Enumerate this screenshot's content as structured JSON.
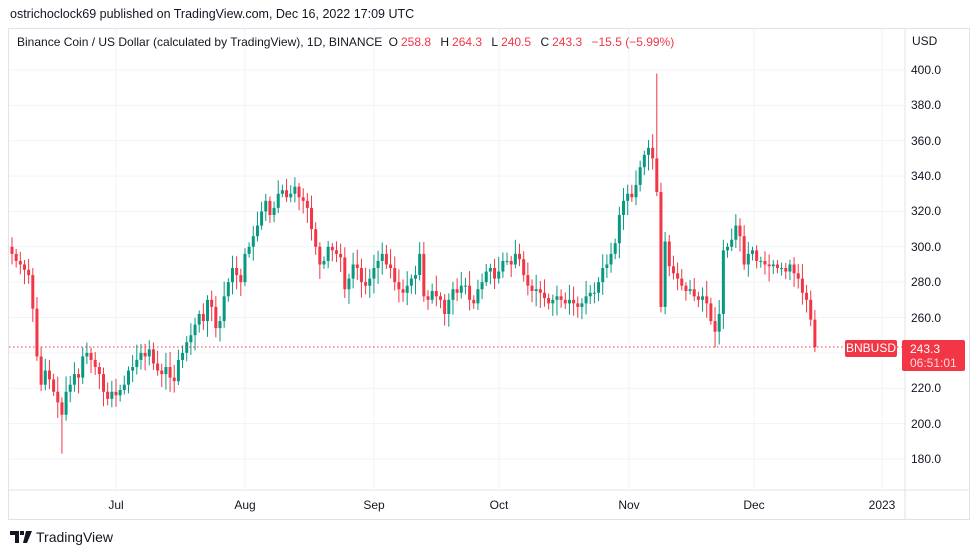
{
  "published": "ostrichoclock69 published on TradingView.com, Dec 16, 2022 17:09 UTC",
  "legend": {
    "title": "Binance Coin / US Dollar (calculated by TradingView), 1D, BINANCE",
    "o_label": "O",
    "o": "258.8",
    "h_label": "H",
    "h": "264.3",
    "l_label": "L",
    "l": "240.5",
    "c_label": "C",
    "c": "243.3",
    "change": "−15.5 (−5.99%)"
  },
  "currency": "USD",
  "symbol_tag": "BNBUSD",
  "last_price": "243.3",
  "countdown": "06:51:01",
  "brand": "TradingView",
  "colors": {
    "up": "#089981",
    "down": "#f23645",
    "grid": "#f0f3fa"
  },
  "chart_data": {
    "type": "candlestick",
    "title": "Binance Coin / US Dollar, 1D",
    "start_date": "2022-06-06",
    "interval": "1D",
    "first_open": 300,
    "close": [
      296,
      292,
      290,
      287,
      284,
      265,
      238,
      222,
      230,
      225,
      218,
      212,
      205,
      218,
      222,
      228,
      226,
      238,
      240,
      236,
      232,
      228,
      218,
      214,
      218,
      216,
      219,
      222,
      230,
      232,
      236,
      240,
      238,
      242,
      234,
      230,
      228,
      232,
      226,
      224,
      236,
      240,
      246,
      250,
      256,
      262,
      258,
      270,
      266,
      254,
      258,
      272,
      280,
      288,
      284,
      280,
      296,
      300,
      306,
      312,
      320,
      326,
      318,
      322,
      330,
      332,
      328,
      330,
      334,
      328,
      326,
      322,
      310,
      300,
      290,
      292,
      300,
      298,
      296,
      294,
      276,
      282,
      290,
      288,
      280,
      278,
      282,
      288,
      292,
      296,
      290,
      288,
      280,
      276,
      274,
      278,
      282,
      284,
      296,
      272,
      270,
      275,
      272,
      270,
      262,
      270,
      276,
      274,
      278,
      278,
      270,
      268,
      276,
      280,
      286,
      288,
      282,
      286,
      292,
      292,
      290,
      296,
      293,
      284,
      278,
      275,
      276,
      274,
      271,
      268,
      270,
      272,
      270,
      268,
      270,
      268,
      266,
      268,
      272,
      274,
      274,
      280,
      288,
      290,
      296,
      302,
      318,
      326,
      330,
      328,
      335,
      345,
      352,
      356,
      350,
      331,
      266,
      303,
      289,
      285,
      282,
      278,
      275,
      276,
      272,
      270,
      272,
      268,
      258,
      252,
      262,
      298,
      300,
      304,
      312,
      306,
      290,
      296,
      298,
      292,
      292,
      290,
      289,
      290,
      288,
      288,
      286,
      290,
      285,
      282,
      274,
      270,
      258.8,
      243.3
    ],
    "wick_overrides": [
      {
        "date": "2022-06-18",
        "low": 183
      },
      {
        "date": "2022-11-08",
        "high": 398
      },
      {
        "date": "2022-12-16",
        "high": 264.3,
        "low": 240.5
      }
    ],
    "ylim": [
      170,
      410
    ],
    "y_ticks": [
      "180.0",
      "200.0",
      "220.0",
      "240.0",
      "260.0",
      "280.0",
      "300.0",
      "320.0",
      "340.0",
      "360.0",
      "380.0",
      "400.0"
    ],
    "x_ticks": [
      "Jul",
      "Aug",
      "Sep",
      "Oct",
      "Nov",
      "Dec",
      "2023"
    ],
    "grid": true
  }
}
